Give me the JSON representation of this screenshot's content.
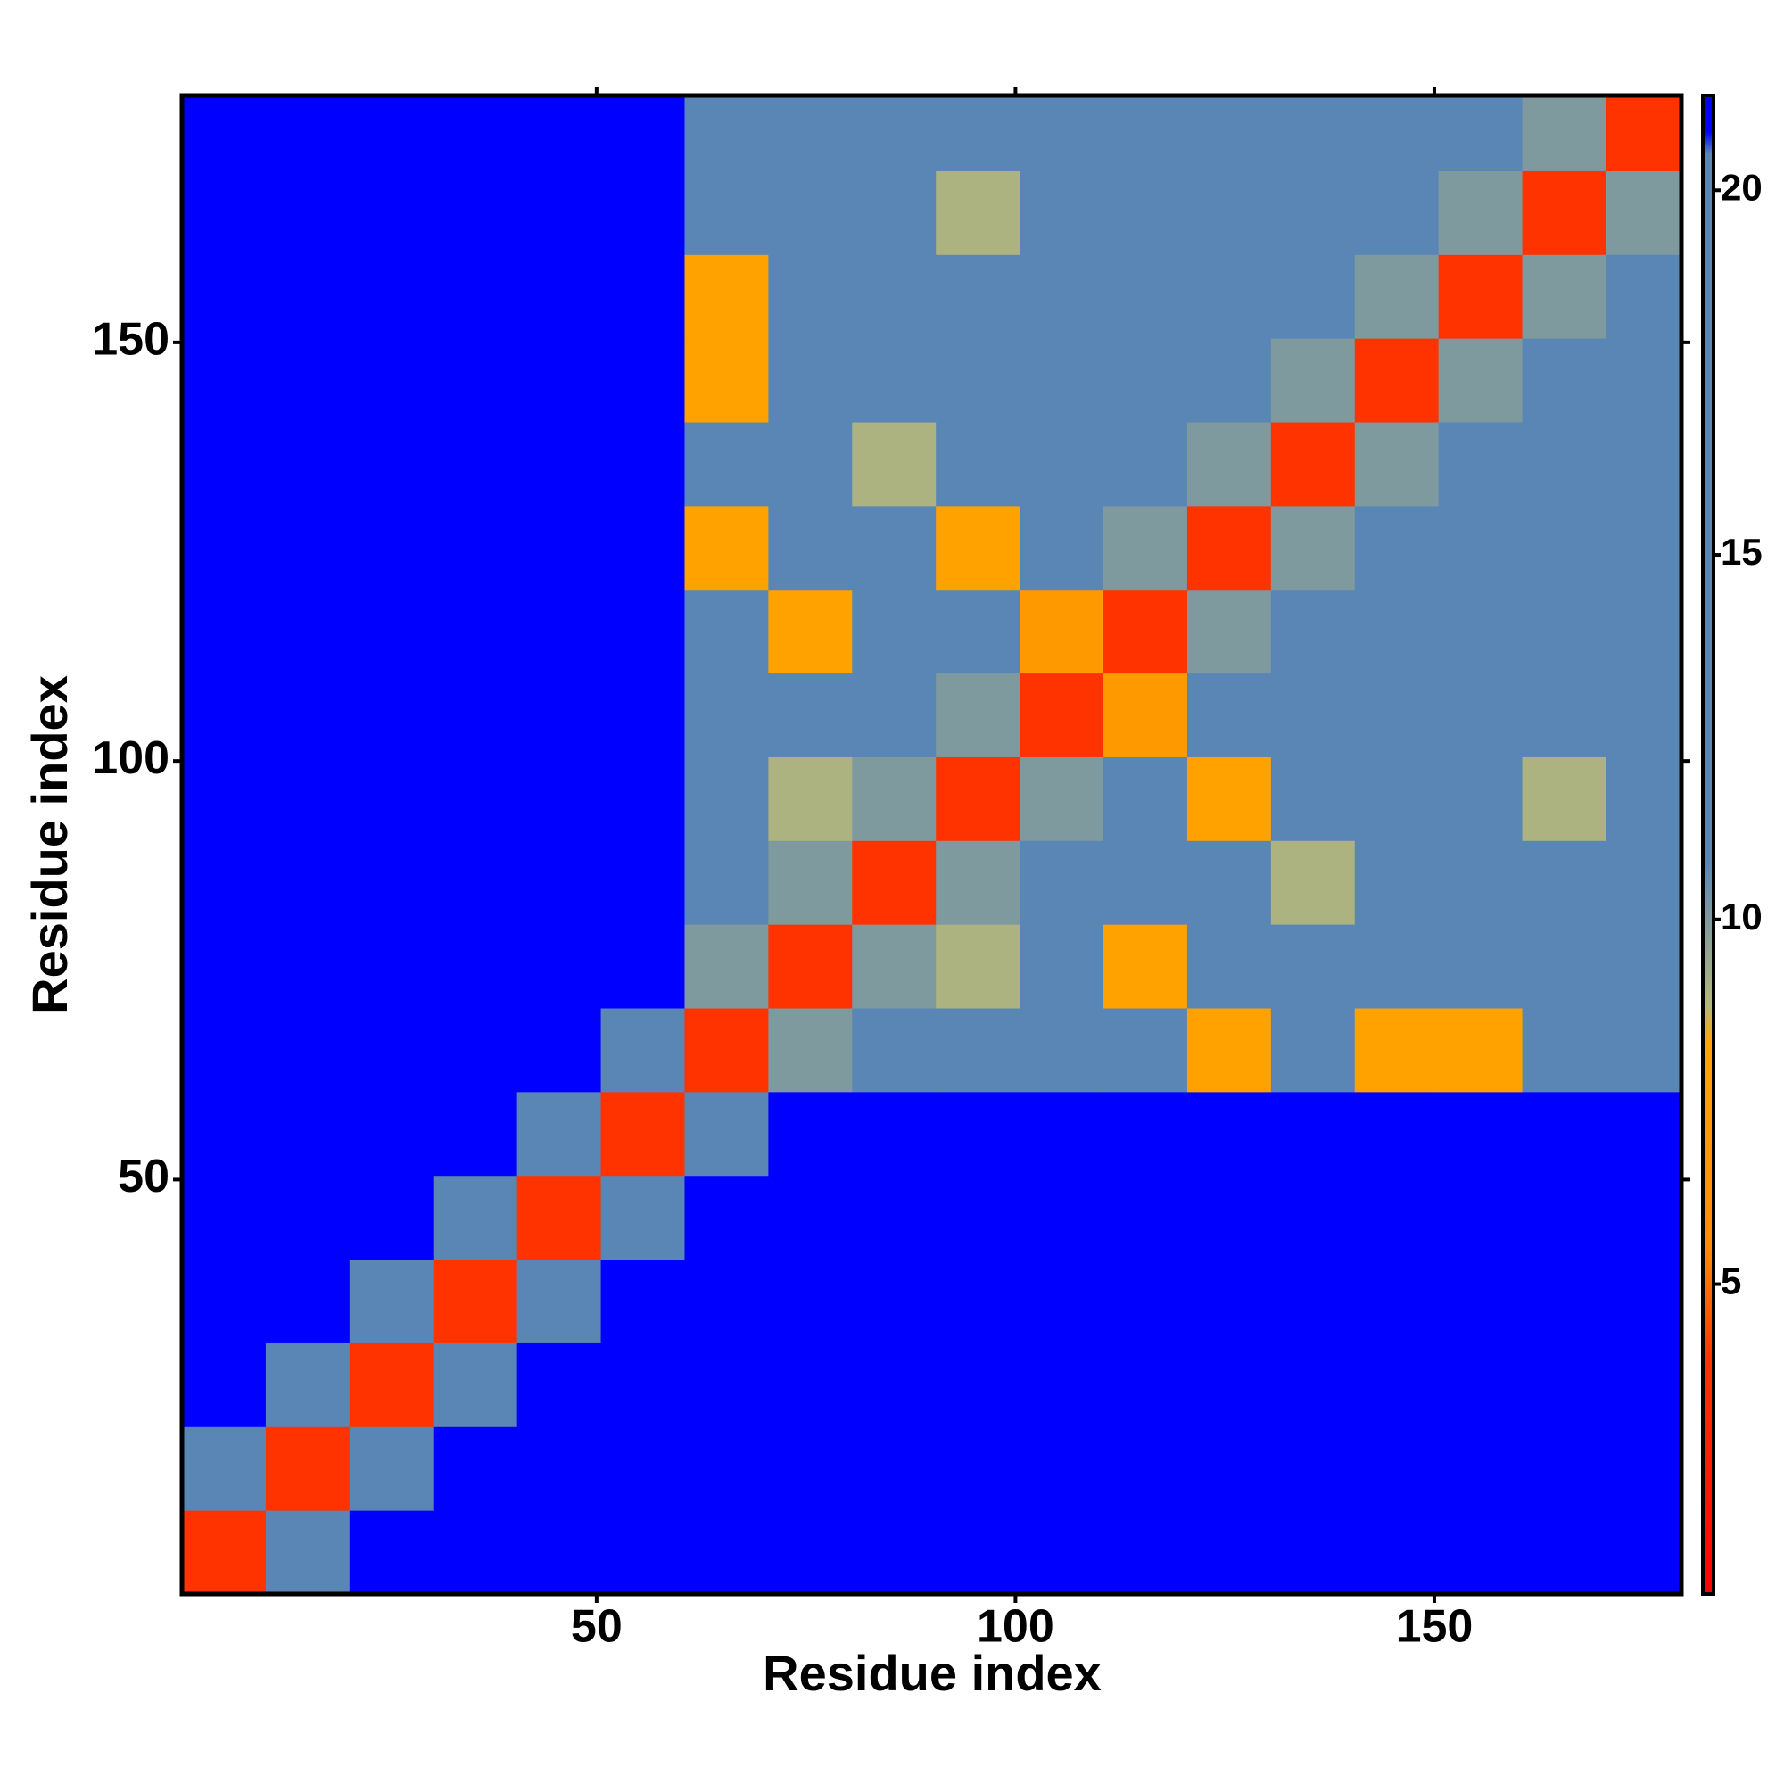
{
  "chart_data": {
    "type": "heatmap",
    "xlabel": "Residue index",
    "ylabel": "Residue index",
    "xlim": [
      0.5,
      179.5
    ],
    "ylim": [
      0.5,
      179.5
    ],
    "xticks": [
      50,
      100,
      150
    ],
    "yticks": [
      50,
      100,
      150
    ],
    "xbins": [
      0.5,
      10.5,
      20.5,
      30.5,
      40.5,
      50.5,
      60.5,
      70.5,
      80.5,
      90.5,
      100.5,
      110.5,
      120.5,
      130.5,
      140.5,
      150.5,
      160.5,
      170.5,
      179.5
    ],
    "ybins": [
      0.5,
      10.5,
      20.5,
      30.5,
      40.5,
      50.5,
      60.5,
      70.5,
      80.5,
      90.5,
      100.5,
      110.5,
      120.5,
      130.5,
      140.5,
      150.5,
      160.5,
      170.5,
      179.5
    ],
    "z": [
      [
        4,
        12,
        21,
        21,
        21,
        21,
        21,
        21,
        21,
        21,
        21,
        21,
        21,
        21,
        21,
        21,
        21,
        21
      ],
      [
        12,
        4,
        12,
        21,
        21,
        21,
        21,
        21,
        21,
        21,
        21,
        21,
        21,
        21,
        21,
        21,
        21,
        21
      ],
      [
        21,
        12,
        4,
        12,
        21,
        21,
        21,
        21,
        21,
        21,
        21,
        21,
        21,
        21,
        21,
        21,
        21,
        21
      ],
      [
        21,
        21,
        12,
        4,
        12,
        21,
        21,
        21,
        21,
        21,
        21,
        21,
        21,
        21,
        21,
        21,
        21,
        21
      ],
      [
        21,
        21,
        21,
        12,
        4,
        12,
        21,
        21,
        21,
        21,
        21,
        21,
        21,
        21,
        21,
        21,
        21,
        21
      ],
      [
        21,
        21,
        21,
        21,
        12,
        4,
        12,
        21,
        21,
        21,
        21,
        21,
        21,
        21,
        21,
        21,
        21,
        21
      ],
      [
        21,
        21,
        21,
        21,
        21,
        12,
        4,
        10,
        13,
        15,
        15,
        15,
        8,
        15,
        8,
        8,
        15,
        15
      ],
      [
        21,
        21,
        21,
        21,
        21,
        21,
        10,
        4,
        10,
        9,
        15,
        8,
        15,
        15,
        15,
        15,
        15,
        15
      ],
      [
        21,
        21,
        21,
        21,
        21,
        21,
        13,
        10,
        4,
        10,
        20,
        15,
        15,
        9,
        15,
        15,
        15,
        15
      ],
      [
        21,
        21,
        21,
        21,
        21,
        21,
        15,
        9,
        10,
        4,
        10,
        13,
        8,
        15,
        15,
        15,
        9,
        15
      ],
      [
        21,
        21,
        21,
        21,
        21,
        21,
        15,
        15,
        20,
        10,
        4,
        7,
        13,
        15,
        15,
        19,
        15,
        19
      ],
      [
        21,
        21,
        21,
        21,
        21,
        21,
        15,
        8,
        15,
        13,
        7,
        4,
        10,
        13,
        15,
        15,
        15,
        15
      ],
      [
        21,
        21,
        21,
        21,
        21,
        21,
        8,
        15,
        15,
        8,
        13,
        10,
        4,
        10,
        13,
        15,
        11,
        15
      ],
      [
        21,
        21,
        21,
        21,
        21,
        21,
        15,
        15,
        9,
        15,
        15,
        13,
        10,
        4,
        10,
        13,
        15,
        15
      ],
      [
        21,
        21,
        21,
        21,
        21,
        21,
        8,
        15,
        15,
        15,
        15,
        15,
        13,
        10,
        4,
        10,
        13,
        15
      ],
      [
        21,
        21,
        21,
        21,
        21,
        21,
        8,
        15,
        15,
        15,
        19,
        15,
        15,
        13,
        10,
        4,
        10,
        13
      ],
      [
        21,
        21,
        21,
        21,
        21,
        21,
        15,
        15,
        15,
        9,
        15,
        15,
        11,
        15,
        13,
        10,
        4,
        10
      ],
      [
        21,
        21,
        21,
        21,
        21,
        21,
        15,
        15,
        15,
        15,
        19,
        15,
        15,
        15,
        15,
        13,
        10,
        4
      ]
    ],
    "zlim": [
      0.75,
      21.3
    ],
    "colorbar_ticks": [
      5,
      10,
      15,
      20
    ],
    "colorscale": [
      [
        0.75,
        "#ff0000"
      ],
      [
        4,
        "#ff3300"
      ],
      [
        5.5,
        "#ff8c00"
      ],
      [
        8.3,
        "#ffa500"
      ],
      [
        8.8,
        "#b5b77a"
      ],
      [
        10.8,
        "#5a86b6"
      ],
      [
        20.5,
        "#5a86b6"
      ],
      [
        20.8,
        "#0000ff"
      ],
      [
        21.3,
        "#0000ff"
      ]
    ]
  }
}
